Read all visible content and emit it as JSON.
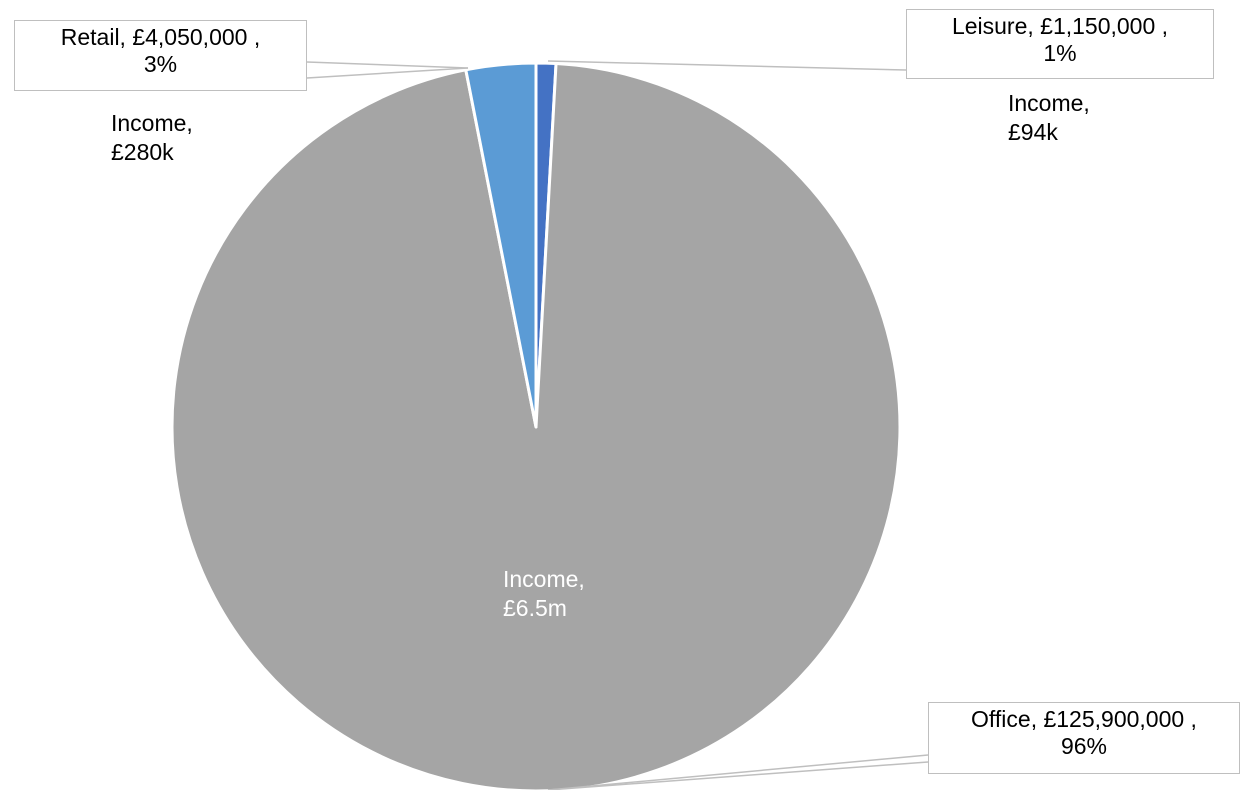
{
  "chart_data": {
    "type": "pie",
    "categories": [
      "Leisure",
      "Office",
      "Retail"
    ],
    "values": [
      1150000,
      125900000,
      4050000
    ],
    "percent_labels": [
      "1%",
      "96%",
      "3%"
    ],
    "colors": [
      "#4472c4",
      "#a5a5a5",
      "#5b9bd5"
    ],
    "legend": "none",
    "callouts": {
      "leisure": {
        "line1": "Leisure,  £1,150,000 ,",
        "line2": "1%"
      },
      "retail": {
        "line1": "Retail,  £4,050,000 ,",
        "line2": "3%"
      },
      "office": {
        "line1": "Office,  £125,900,000 ,",
        "line2": "96%"
      }
    },
    "annotations": {
      "retail_income": {
        "line1": "Income,",
        "line2": "£280k"
      },
      "leisure_income": {
        "line1": "Income,",
        "line2": "£94k"
      },
      "office_income": {
        "line1": "Income,",
        "line2": "£6.5m"
      }
    }
  }
}
